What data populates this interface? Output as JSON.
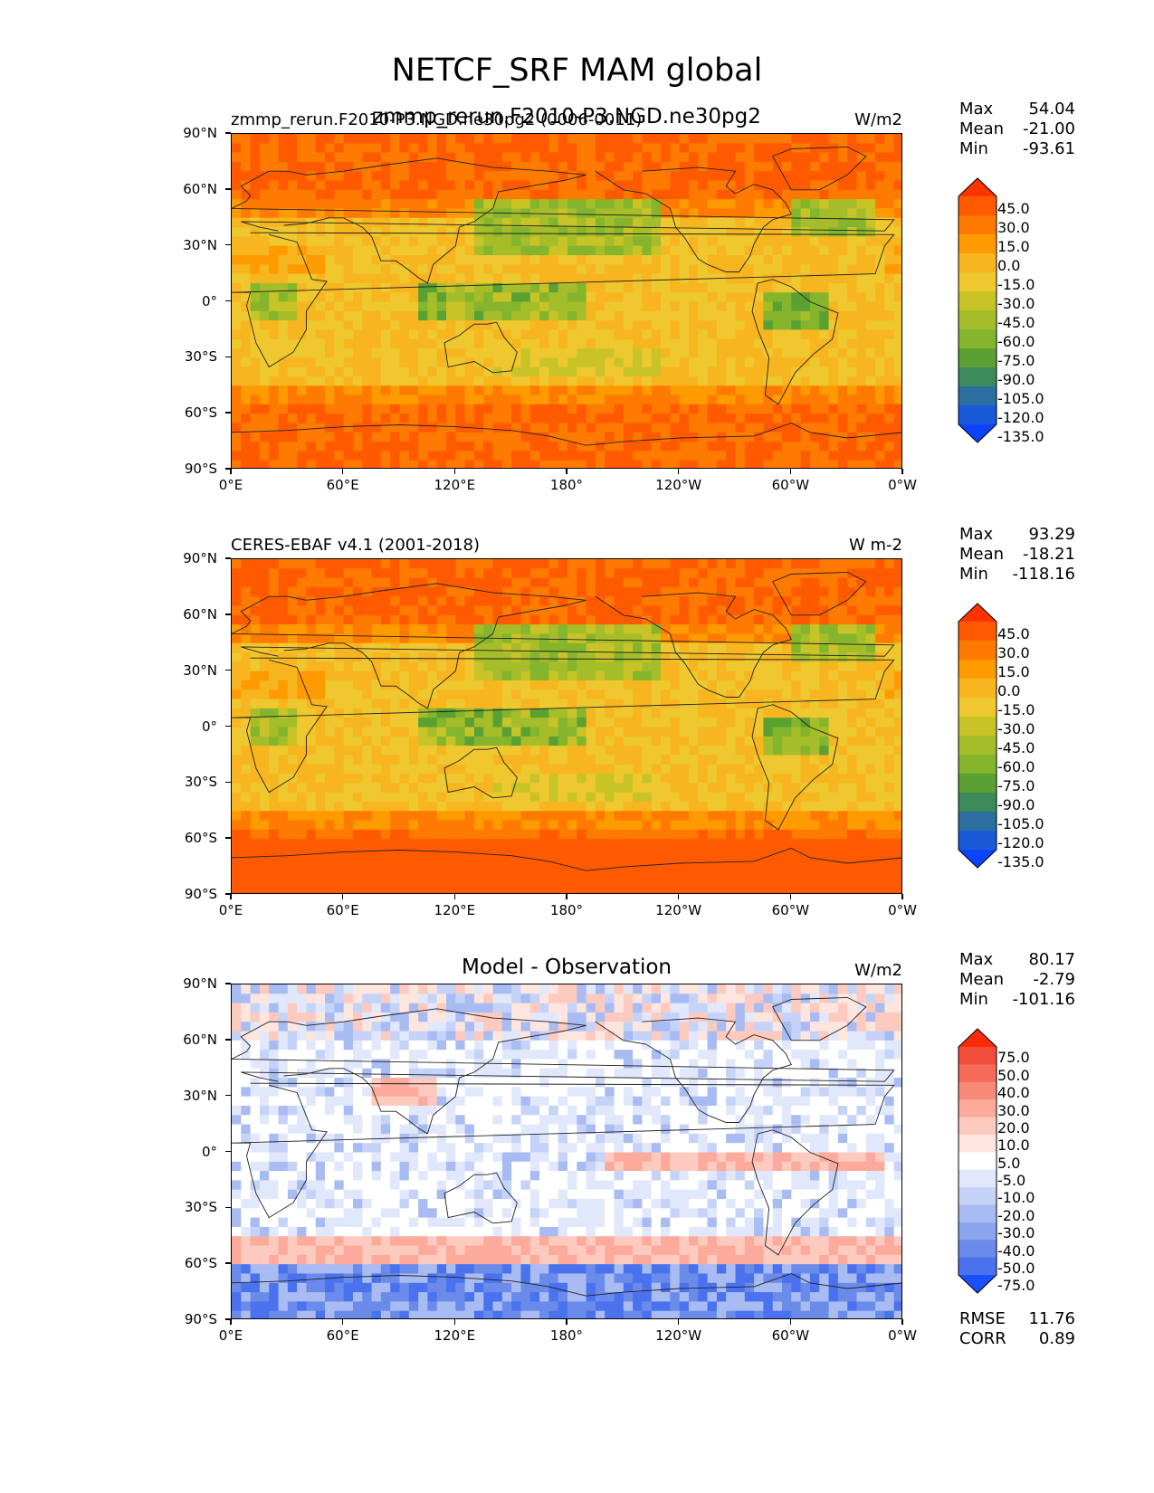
{
  "suptitle": "NETCF_SRF MAM global",
  "panels": [
    {
      "title_left": "zmmp_rerun.F2010-P3.NGD.ne30pg2 (0006-0011)",
      "title_center": "zmmp_rerun.F2010-P3.NGD.ne30pg2",
      "title_right": "W/m2",
      "stats": {
        "max_label": "Max",
        "max": "54.04",
        "mean_label": "Mean",
        "mean": "-21.00",
        "min_label": "Min",
        "min": "-93.61"
      },
      "cbar_labels": [
        "45.0",
        "30.0",
        "15.0",
        "0.0",
        "-15.0",
        "-30.0",
        "-45.0",
        "-60.0",
        "-75.0",
        "-90.0",
        "-105.0",
        "-120.0",
        "-135.0"
      ],
      "cbar_colors": [
        "#ff3300",
        "#ff5a00",
        "#ff7a00",
        "#ff9a00",
        "#f7b520",
        "#efc830",
        "#c8c428",
        "#a6bd2a",
        "#84b52c",
        "#5aa032",
        "#3d8a5a",
        "#2b6fa0",
        "#1a5ad8",
        "#0a44ff"
      ]
    },
    {
      "title_left": "CERES-EBAF v4.1 (2001-2018)",
      "title_center": "",
      "title_right": "W m-2",
      "stats": {
        "max_label": "Max",
        "max": "93.29",
        "mean_label": "Mean",
        "mean": "-18.21",
        "min_label": "Min",
        "min": "-118.16"
      },
      "cbar_labels": [
        "45.0",
        "30.0",
        "15.0",
        "0.0",
        "-15.0",
        "-30.0",
        "-45.0",
        "-60.0",
        "-75.0",
        "-90.0",
        "-105.0",
        "-120.0",
        "-135.0"
      ],
      "cbar_colors": [
        "#ff3300",
        "#ff5a00",
        "#ff7a00",
        "#ff9a00",
        "#f7b520",
        "#efc830",
        "#c8c428",
        "#a6bd2a",
        "#84b52c",
        "#5aa032",
        "#3d8a5a",
        "#2b6fa0",
        "#1a5ad8",
        "#0a44ff"
      ]
    },
    {
      "title_left": "",
      "title_center": "Model - Observation",
      "title_right": "W/m2",
      "stats": {
        "max_label": "Max",
        "max": "80.17",
        "mean_label": "Mean",
        "mean": "-2.79",
        "min_label": "Min",
        "min": "-101.16"
      },
      "cbar_labels": [
        "75.0",
        "50.0",
        "40.0",
        "30.0",
        "20.0",
        "10.0",
        "5.0",
        "-5.0",
        "-10.0",
        "-20.0",
        "-30.0",
        "-40.0",
        "-50.0",
        "-75.0"
      ],
      "cbar_colors": [
        "#ff2a0a",
        "#f24c3a",
        "#f56a58",
        "#f88a7a",
        "#fbaa9c",
        "#fdcabf",
        "#fee6df",
        "#ffffff",
        "#e2e8fb",
        "#c6d3f8",
        "#a8bcf3",
        "#8aa4ee",
        "#6b8bea",
        "#4a72ee",
        "#1a50ff"
      ],
      "footer": {
        "rmse_label": "RMSE",
        "rmse": "11.76",
        "corr_label": "CORR",
        "corr": "0.89"
      }
    }
  ],
  "axes": {
    "y_ticks": [
      "90°N",
      "60°N",
      "30°N",
      "0°",
      "30°S",
      "60°S",
      "90°S"
    ],
    "x_ticks": [
      "0°E",
      "60°E",
      "120°E",
      "180°",
      "120°W",
      "60°W",
      "0°W"
    ]
  },
  "chart_data": [
    {
      "type": "heatmap",
      "title": "zmmp_rerun.F2010-P3.NGD.ne30pg2",
      "units": "W/m2",
      "xlim": [
        0,
        360
      ],
      "ylim": [
        -90,
        90
      ],
      "max": 54.04,
      "mean": -21.0,
      "min": -93.61,
      "levels": [
        -135,
        -120,
        -105,
        -90,
        -75,
        -60,
        -45,
        -30,
        -15,
        0,
        15,
        30,
        45
      ]
    },
    {
      "type": "heatmap",
      "title": "CERES-EBAF v4.1 (2001-2018)",
      "units": "W m-2",
      "xlim": [
        0,
        360
      ],
      "ylim": [
        -90,
        90
      ],
      "max": 93.29,
      "mean": -18.21,
      "min": -118.16,
      "levels": [
        -135,
        -120,
        -105,
        -90,
        -75,
        -60,
        -45,
        -30,
        -15,
        0,
        15,
        30,
        45
      ]
    },
    {
      "type": "heatmap",
      "title": "Model - Observation",
      "units": "W/m2",
      "xlim": [
        0,
        360
      ],
      "ylim": [
        -90,
        90
      ],
      "max": 80.17,
      "mean": -2.79,
      "min": -101.16,
      "rmse": 11.76,
      "corr": 0.89,
      "levels": [
        -75,
        -50,
        -40,
        -30,
        -20,
        -10,
        -5,
        5,
        10,
        20,
        30,
        40,
        50,
        75
      ]
    }
  ]
}
